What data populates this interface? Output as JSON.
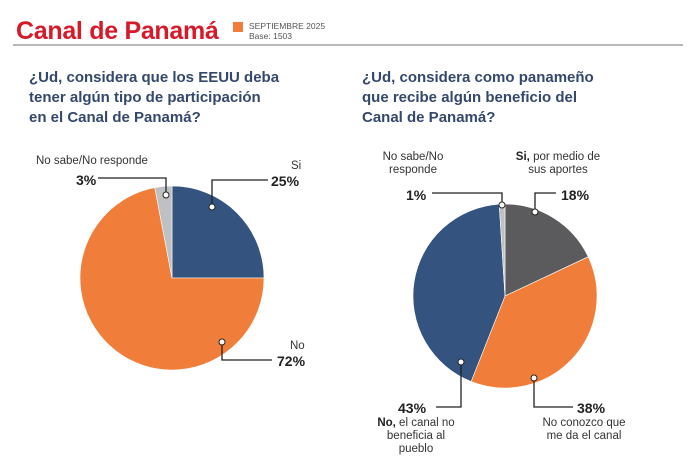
{
  "header": {
    "title": "Canal de Panamá",
    "legend_date": "SEPTIEMBRE 2025",
    "legend_base": "Base: 1503",
    "legend_color": "#f07d3a"
  },
  "colors": {
    "title_red": "#d7192a",
    "question_navy": "#34486b",
    "blue": "#34537e",
    "orange": "#f07d3a",
    "light_gray": "#bfc0c2",
    "dark_gray": "#5b5b5d"
  },
  "chart_data": [
    {
      "type": "pie",
      "title": "¿Ud, considera que los EEUU deba tener algún tipo de participación en el Canal de Panamá?",
      "title_lines": [
        "¿Ud, considera que los EEUU deba",
        "tener algún tipo de participación",
        "en el Canal de Panamá?"
      ],
      "start_angle": "12 o'clock, clockwise",
      "slices": [
        {
          "label": "Si",
          "value": 25,
          "value_label": "25%",
          "color": "#34537e"
        },
        {
          "label": "No",
          "value": 72,
          "value_label": "72%",
          "color": "#f07d3a"
        },
        {
          "label": "No sabe/No responde",
          "value": 3,
          "value_label": "3%",
          "color": "#bfc0c2"
        }
      ]
    },
    {
      "type": "pie",
      "title": "¿Ud, considera como panameño que recibe algún beneficio del Canal de Panamá?",
      "title_lines": [
        "¿Ud, considera como panameño",
        "que recibe algún beneficio del",
        "Canal de Panamá?"
      ],
      "start_angle": "12 o'clock, clockwise",
      "slices": [
        {
          "label_bold": "Si,",
          "label_rest": "por medio de sus aportes",
          "label_lines": [
            "por medio de",
            "sus aportes"
          ],
          "value": 18,
          "value_label": "18%",
          "color": "#5b5b5d"
        },
        {
          "label_bold": "",
          "label_rest": "No conozco que me da el canal",
          "label_lines": [
            "No conozco que",
            "me da el canal"
          ],
          "value": 38,
          "value_label": "38%",
          "color": "#f07d3a"
        },
        {
          "label_bold": "No,",
          "label_rest": "el canal no beneficia al pueblo",
          "label_lines": [
            "el canal no",
            "beneficia al",
            "pueblo"
          ],
          "value": 43,
          "value_label": "43%",
          "color": "#34537e"
        },
        {
          "label_bold": "",
          "label_rest": "No sabe/No responde",
          "label_lines": [
            "No sabe/No",
            "responde"
          ],
          "value": 1,
          "value_label": "1%",
          "color": "#bfc0c2"
        }
      ]
    }
  ]
}
